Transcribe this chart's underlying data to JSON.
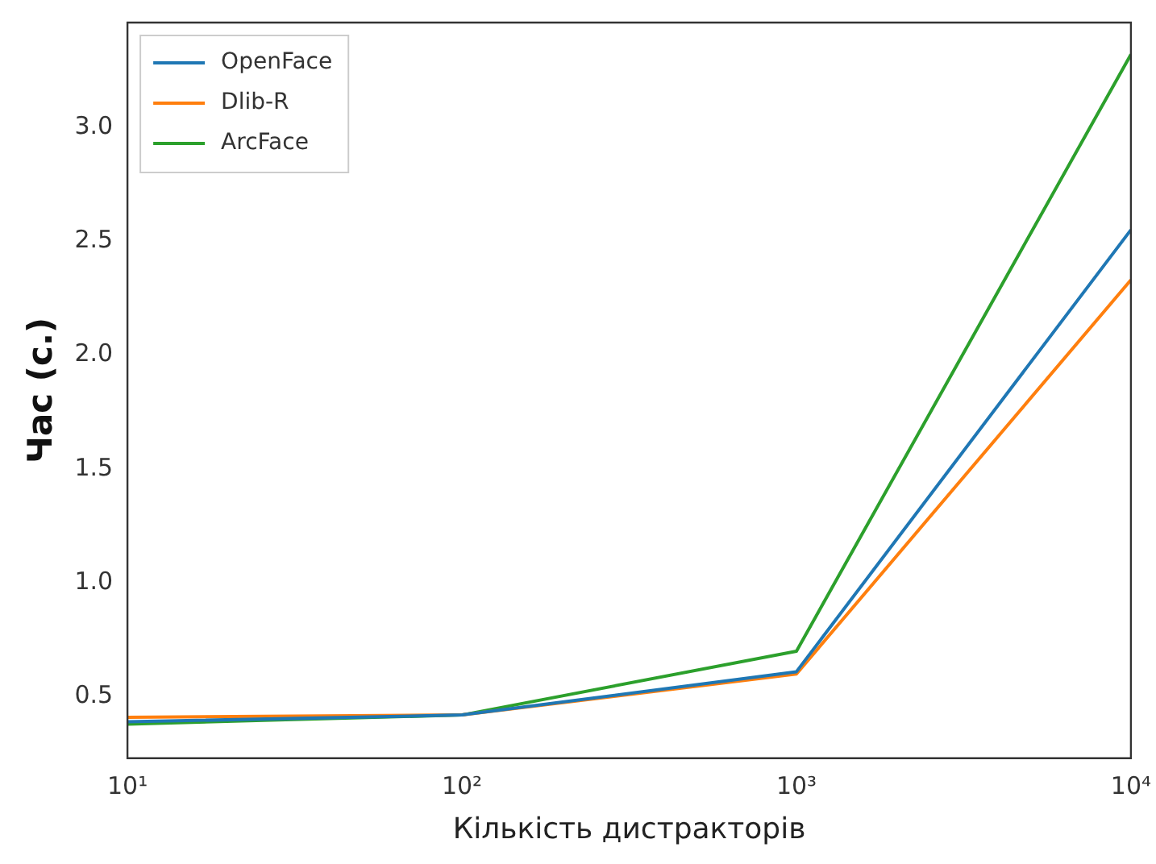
{
  "chart_data": {
    "type": "line",
    "xlabel": "Кількість дистракторів",
    "ylabel": "Час (с.)",
    "x": [
      10,
      100,
      1000,
      10000
    ],
    "series": [
      {
        "name": "OpenFace",
        "color": "#1f77b4",
        "values": [
          0.39,
          0.42,
          0.61,
          2.55
        ]
      },
      {
        "name": "Dlib-R",
        "color": "#ff7f0e",
        "values": [
          0.41,
          0.42,
          0.6,
          2.33
        ]
      },
      {
        "name": "ArcFace",
        "color": "#2ca02c",
        "values": [
          0.38,
          0.42,
          0.7,
          3.32
        ]
      }
    ],
    "log": "x",
    "xlim": [
      10,
      10000
    ],
    "xticks": [
      {
        "value": 10,
        "label": "10¹"
      },
      {
        "value": 100,
        "label": "10²"
      },
      {
        "value": 1000,
        "label": "10³"
      },
      {
        "value": 10000,
        "label": "10⁴"
      }
    ],
    "ylim": [
      0.23,
      3.46
    ],
    "yticks": [
      0.5,
      {
        "value": 1,
        "label": "1.0"
      },
      1.5,
      {
        "value": 2,
        "label": "2.0"
      },
      2.5,
      {
        "value": 3,
        "label": "3.0"
      }
    ],
    "legend": "top left",
    "marker": "none",
    "line_style": "solid",
    "grid": false
  }
}
